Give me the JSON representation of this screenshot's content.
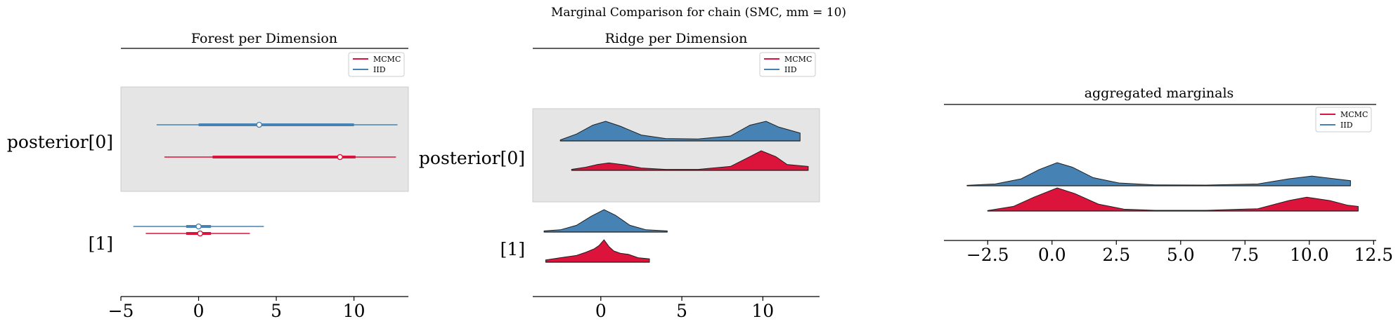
{
  "suptitle": "Marginal Comparison for chain (SMC, mm = 10)",
  "colors": {
    "MCMC": "#dc143c",
    "IID": "#4682b4",
    "band": "#e5e5e5"
  },
  "chart_data": [
    {
      "type": "forest",
      "title": "Forest per Dimension",
      "legend": {
        "placement": "top-right",
        "entries": [
          "MCMC",
          "IID"
        ]
      },
      "ylabels": [
        "posterior[0]",
        "[1]"
      ],
      "xticks": [
        -5,
        0,
        5,
        10
      ],
      "xlim": [
        -5,
        13.5
      ],
      "rows": [
        {
          "label": "posterior[0]",
          "IID": {
            "min": -2.7,
            "q25": 0.0,
            "median": 3.9,
            "q75": 10.0,
            "max": 12.8
          },
          "MCMC": {
            "min": -2.2,
            "q25": 0.9,
            "median": 9.1,
            "q75": 10.1,
            "max": 12.7
          }
        },
        {
          "label": "[1]",
          "IID": {
            "min": -4.2,
            "q25": -0.8,
            "median": 0.0,
            "q75": 0.8,
            "max": 4.2
          },
          "MCMC": {
            "min": -3.4,
            "q25": -0.8,
            "median": 0.1,
            "q75": 0.8,
            "max": 3.3
          }
        }
      ]
    },
    {
      "type": "ridge",
      "title": "Ridge per Dimension",
      "legend": {
        "placement": "top-right",
        "entries": [
          "MCMC",
          "IID"
        ]
      },
      "ylabels": [
        "posterior[0]",
        "[1]"
      ],
      "xticks": [
        0,
        5,
        10
      ],
      "xlim": [
        -4.2,
        13.5
      ],
      "rows": [
        {
          "label": "posterior[0]",
          "IID": {
            "x": [
              -2.5,
              -1.5,
              -0.5,
              0.3,
              1.2,
              2.5,
              4,
              6,
              8,
              9.2,
              10.2,
              11,
              12.3
            ],
            "y": [
              0.05,
              0.35,
              0.8,
              1.0,
              0.75,
              0.3,
              0.12,
              0.1,
              0.25,
              0.8,
              1.0,
              0.7,
              0.4
            ]
          },
          "MCMC": {
            "x": [
              -1.8,
              -1,
              -0.2,
              0.5,
              1.5,
              2.5,
              4,
              6,
              8,
              9.2,
              9.9,
              10.8,
              11.5,
              12.8
            ],
            "y": [
              0.05,
              0.15,
              0.3,
              0.38,
              0.28,
              0.12,
              0.05,
              0.05,
              0.2,
              0.7,
              1.0,
              0.7,
              0.3,
              0.2
            ]
          }
        },
        {
          "label": "[1]",
          "IID": {
            "x": [
              -3.5,
              -2.5,
              -1.5,
              -0.6,
              0.2,
              0.9,
              1.8,
              2.8,
              4.1
            ],
            "y": [
              0.05,
              0.1,
              0.3,
              0.7,
              1.0,
              0.75,
              0.3,
              0.1,
              0.05
            ]
          },
          "MCMC": {
            "x": [
              -3.4,
              -2.5,
              -1.5,
              -0.9,
              -0.4,
              -0.1,
              0.2,
              0.5,
              0.8,
              1.2,
              1.7,
              2.3,
              3.0
            ],
            "y": [
              0.1,
              0.2,
              0.3,
              0.45,
              0.6,
              0.75,
              1.0,
              0.7,
              0.5,
              0.4,
              0.35,
              0.2,
              0.15
            ]
          }
        }
      ]
    },
    {
      "type": "ridge",
      "title": "aggregated marginals",
      "legend": {
        "placement": "top-right",
        "entries": [
          "MCMC",
          "IID"
        ]
      },
      "xticks": [
        -2.5,
        0.0,
        2.5,
        5.0,
        7.5,
        10.0,
        12.5
      ],
      "xtick_labels": [
        "−2.5",
        "0.0",
        "2.5",
        "5.0",
        "7.5",
        "10.0",
        "12.5"
      ],
      "xlim": [
        -4.2,
        12.6
      ],
      "series": [
        {
          "name": "IID",
          "x": [
            -3.3,
            -2.2,
            -1.2,
            -0.5,
            0.2,
            0.8,
            1.6,
            2.6,
            4,
            6,
            8,
            9.2,
            10.1,
            11,
            11.6
          ],
          "y": [
            0.02,
            0.08,
            0.3,
            0.7,
            1.0,
            0.8,
            0.35,
            0.12,
            0.04,
            0.03,
            0.08,
            0.3,
            0.42,
            0.3,
            0.22
          ]
        },
        {
          "name": "MCMC",
          "x": [
            -2.5,
            -1.5,
            -0.7,
            0.2,
            0.9,
            1.8,
            2.8,
            4,
            6,
            8,
            9.2,
            9.9,
            10.8,
            11.5,
            11.9
          ],
          "y": [
            0.02,
            0.2,
            0.6,
            1.0,
            0.75,
            0.3,
            0.08,
            0.03,
            0.03,
            0.1,
            0.45,
            0.6,
            0.45,
            0.25,
            0.2
          ]
        }
      ]
    }
  ]
}
